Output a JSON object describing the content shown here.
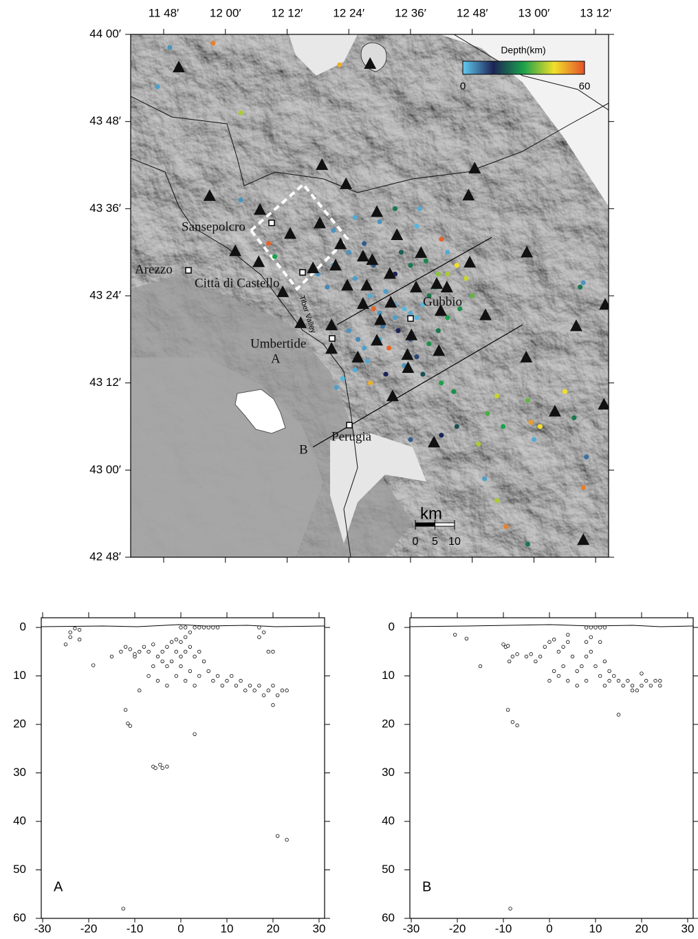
{
  "chart_data": [
    {
      "type": "map",
      "xlim": [
        11.693,
        13.242
      ],
      "ylim": [
        42.8,
        44.0
      ],
      "xticks": [
        {
          "value": 11.8,
          "label": "11 48′"
        },
        {
          "value": 12.0,
          "label": "12 00′"
        },
        {
          "value": 12.2,
          "label": "12 12′"
        },
        {
          "value": 12.4,
          "label": "12 24′"
        },
        {
          "value": 12.6,
          "label": "12 36′"
        },
        {
          "value": 12.8,
          "label": "12 48′"
        },
        {
          "value": 13.0,
          "label": "13 00′"
        },
        {
          "value": 13.2,
          "label": "13 12′"
        }
      ],
      "yticks": [
        {
          "value": 44.0,
          "label": "44 00′"
        },
        {
          "value": 43.8,
          "label": "43 48′"
        },
        {
          "value": 43.6,
          "label": "43 36′"
        },
        {
          "value": 43.4,
          "label": "43 24′"
        },
        {
          "value": 43.2,
          "label": "43 12′"
        },
        {
          "value": 43.0,
          "label": "43 00′"
        },
        {
          "value": 42.8,
          "label": "42 48′"
        }
      ],
      "events": {
        "x": [
          11.82,
          11.96,
          11.78,
          12.37,
          12.05,
          12.05,
          12.14,
          12.16,
          12.5,
          12.55,
          12.63,
          12.62,
          12.7,
          12.72,
          12.45,
          12.4,
          12.35,
          12.3,
          12.33,
          12.42,
          12.47,
          12.52,
          12.55,
          12.58,
          12.6,
          12.62,
          12.55,
          12.5,
          12.48,
          12.51,
          12.56,
          12.6,
          12.64,
          12.66,
          12.68,
          12.72,
          12.75,
          12.78,
          12.8,
          12.76,
          12.72,
          12.69,
          12.66,
          12.62,
          12.58,
          12.52,
          12.47,
          12.42,
          12.38,
          12.45,
          12.4,
          12.43,
          12.64,
          12.7,
          12.74,
          12.69,
          12.65,
          12.6,
          12.57,
          12.55,
          12.48,
          12.82,
          12.88,
          12.9,
          12.99,
          13.0,
          13.02,
          13.1,
          12.98,
          13.15,
          13.16,
          13.13,
          13.17,
          13.16,
          12.84,
          12.88,
          12.91,
          12.98,
          12.75,
          12.85,
          12.7,
          12.6,
          12.35,
          12.42,
          12.53,
          12.36,
          12.46,
          12.5
        ],
        "y": [
          43.97,
          43.98,
          43.88,
          43.93,
          43.82,
          43.62,
          43.52,
          43.49,
          43.57,
          43.6,
          43.6,
          43.56,
          43.53,
          43.5,
          43.52,
          43.5,
          43.47,
          43.45,
          43.42,
          43.44,
          43.4,
          43.41,
          43.38,
          43.37,
          43.36,
          43.35,
          43.35,
          43.36,
          43.37,
          43.33,
          43.32,
          43.3,
          43.38,
          43.4,
          43.42,
          43.45,
          43.47,
          43.44,
          43.4,
          43.37,
          43.35,
          43.32,
          43.29,
          43.26,
          43.24,
          43.22,
          43.2,
          43.23,
          43.21,
          43.28,
          43.32,
          43.3,
          43.22,
          43.2,
          43.18,
          43.45,
          43.48,
          43.47,
          43.5,
          43.45,
          43.47,
          43.06,
          43.17,
          43.1,
          43.11,
          43.07,
          43.1,
          43.18,
          43.16,
          43.42,
          43.43,
          43.12,
          43.03,
          42.96,
          42.98,
          42.93,
          42.87,
          42.83,
          43.1,
          43.13,
          43.08,
          43.07,
          43.55,
          43.58,
          43.28,
          43.19,
          43.25,
          43.3
        ],
        "values": [
          5,
          55,
          4,
          50,
          40,
          5,
          58,
          30,
          5,
          25,
          3,
          2,
          58,
          3,
          10,
          5,
          4,
          5,
          6,
          4,
          3,
          4,
          3,
          2,
          3,
          2,
          4,
          5,
          58,
          8,
          15,
          10,
          2,
          25,
          30,
          40,
          45,
          42,
          35,
          28,
          30,
          25,
          28,
          12,
          5,
          15,
          50,
          3,
          2,
          4,
          5,
          6,
          20,
          30,
          28,
          38,
          27,
          25,
          22,
          15,
          10,
          40,
          42,
          30,
          52,
          3,
          45,
          45,
          35,
          25,
          5,
          25,
          8,
          55,
          4,
          40,
          55,
          25,
          20,
          33,
          15,
          10,
          5,
          3,
          58,
          4,
          3,
          3
        ]
      },
      "stations": {
        "x": [
          11.849,
          12.469,
          12.313,
          12.808,
          11.949,
          12.391,
          12.788,
          12.112,
          12.491,
          12.306,
          12.21,
          12.032,
          12.108,
          12.556,
          12.634,
          12.977,
          12.792,
          12.373,
          12.357,
          12.284,
          12.446,
          12.476,
          12.533,
          12.458,
          12.395,
          12.618,
          12.685,
          12.718,
          12.536,
          12.446,
          12.186,
          12.244,
          12.344,
          12.502,
          12.698,
          12.843,
          12.603,
          12.491,
          12.344,
          12.59,
          12.429,
          12.692,
          12.592,
          12.975,
          13.137,
          13.231,
          12.542,
          13.068,
          13.227,
          12.676,
          13.16
        ],
        "y": [
          43.924,
          43.932,
          43.7,
          43.692,
          43.629,
          43.656,
          43.63,
          43.597,
          43.592,
          43.566,
          43.542,
          43.502,
          43.477,
          43.539,
          43.498,
          43.499,
          43.476,
          43.518,
          43.469,
          43.463,
          43.49,
          43.482,
          43.45,
          43.423,
          43.423,
          43.419,
          43.427,
          43.419,
          43.384,
          43.381,
          43.408,
          43.337,
          43.332,
          43.344,
          43.365,
          43.355,
          43.309,
          43.297,
          43.278,
          43.264,
          43.258,
          43.273,
          43.234,
          43.258,
          43.33,
          43.379,
          43.169,
          43.134,
          43.15,
          43.063,
          42.839
        ]
      },
      "colorbar": {
        "title": "Depth(km)",
        "ticks": [
          0,
          60
        ],
        "colors": [
          "#62ccf2",
          "#1c2456",
          "#1ba14b",
          "#f1e02a",
          "#e4502a"
        ]
      },
      "scale_bar": {
        "label": "km",
        "ticks": [
          0,
          5,
          10
        ]
      },
      "places": [
        "Sansepolcro",
        "Arezzo",
        "Città di Castello",
        "Umbertide",
        "Gubbio",
        "Perugia"
      ],
      "river_label": "Tiber Valley",
      "profile_labels": [
        "A",
        "B"
      ]
    },
    {
      "type": "scatter",
      "panel_label": "A",
      "x": [
        -24,
        -23,
        -22,
        -25,
        -24,
        -22,
        -19,
        -15,
        -13,
        -12,
        -11,
        -10,
        -9,
        -8,
        -7,
        -6,
        -5,
        -4,
        -3,
        -2,
        -1,
        0,
        1,
        0,
        1,
        2,
        3,
        4,
        5,
        6,
        7,
        8,
        -1,
        0,
        1,
        2,
        3,
        4,
        5,
        -2,
        -3,
        -4,
        -6,
        0,
        2,
        4,
        6,
        8,
        10,
        12,
        14,
        15,
        7,
        9,
        11,
        13,
        16,
        17,
        18,
        19,
        20,
        21,
        22,
        23,
        17,
        18,
        17,
        19,
        20,
        -5,
        -3,
        -1,
        1,
        3,
        -12,
        -11.5,
        -11,
        3,
        -6,
        -5.5,
        -4.5,
        -4,
        -3,
        21,
        23,
        -12.5,
        -9,
        20,
        -7,
        -10
      ],
      "y": [
        1,
        0.2,
        0.5,
        3.5,
        2,
        2.5,
        7.8,
        6,
        5,
        4,
        4.5,
        6,
        5,
        4,
        5,
        3.5,
        6,
        5,
        4,
        3,
        2.5,
        3,
        2,
        0,
        0,
        1,
        0,
        0,
        0,
        0,
        0,
        0,
        5,
        6,
        5,
        4,
        6,
        5,
        7,
        7,
        8,
        7,
        8,
        8,
        9,
        10,
        9,
        10,
        11,
        12,
        13,
        12,
        11,
        12,
        10,
        11,
        13,
        12,
        14,
        13,
        12,
        14,
        13,
        13,
        0,
        1,
        2,
        5,
        5,
        11,
        12,
        10,
        11,
        12,
        17,
        19.8,
        20.3,
        22,
        28.7,
        29,
        28.3,
        29,
        28.7,
        43,
        43.8,
        58,
        13,
        16,
        10,
        5.5
      ],
      "xlim": [
        -30.3,
        31.2
      ],
      "ylim": [
        -2,
        60
      ],
      "y_inverted": true,
      "xticks": [
        -30,
        -20,
        -10,
        0,
        10,
        20,
        30
      ],
      "yticks": [
        0,
        10,
        20,
        30,
        40,
        50,
        60
      ]
    },
    {
      "type": "scatter",
      "panel_label": "B",
      "x": [
        -20.5,
        -18,
        -15,
        -10,
        -9.5,
        -9,
        -8.7,
        -8,
        -7,
        -5,
        -4,
        -3,
        -2,
        -1,
        0,
        1,
        2,
        3,
        4,
        4,
        5,
        3,
        1,
        0,
        2,
        4,
        6,
        7,
        8,
        9,
        8,
        9,
        8,
        9,
        10,
        11,
        12,
        11,
        12,
        13,
        14,
        15,
        16,
        17,
        18,
        19,
        20,
        21,
        22,
        23,
        24,
        24,
        10,
        11,
        12,
        13,
        15,
        -9,
        -8,
        -7,
        -8.5,
        6,
        8,
        18,
        20
      ],
      "y": [
        1.5,
        2.3,
        8,
        3.5,
        4,
        3.8,
        7,
        6,
        5.5,
        6,
        5.5,
        7,
        6,
        4,
        3,
        2.5,
        5,
        4,
        3,
        1.5,
        6,
        8,
        9,
        11,
        10,
        11,
        9,
        8,
        6,
        5,
        3,
        2,
        0,
        0,
        0,
        0,
        0,
        3,
        7,
        9,
        10,
        11,
        12,
        11,
        12,
        13,
        12,
        11,
        12,
        11,
        12,
        11,
        8,
        10,
        12,
        11,
        18,
        17,
        19.5,
        20.2,
        58,
        12,
        11,
        13,
        9.5
      ],
      "xlim": [
        -30.3,
        31.2
      ],
      "ylim": [
        -2,
        60
      ],
      "y_inverted": true,
      "xticks": [
        -30,
        -20,
        -10,
        0,
        10,
        20,
        30
      ],
      "yticks": [
        0,
        10,
        20,
        30,
        40,
        50,
        60
      ]
    }
  ]
}
